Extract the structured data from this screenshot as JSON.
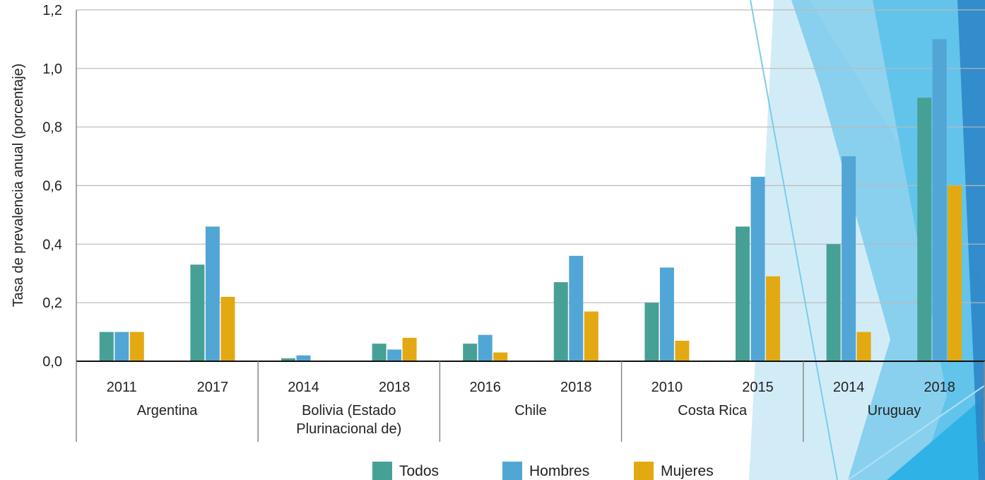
{
  "chart_data": {
    "type": "bar",
    "ylabel": "Tasa de prevalencia anual (porcentaje)",
    "ylim": [
      0,
      1.2
    ],
    "yticks": [
      "0,0",
      "0,2",
      "0,4",
      "0,6",
      "0,8",
      "1,0",
      "1,2"
    ],
    "grid": true,
    "legend_position": "bottom",
    "groups": [
      {
        "label": "Argentina",
        "label_lines": [
          "Argentina"
        ],
        "years": [
          "2011",
          "2017"
        ]
      },
      {
        "label": "Bolivia (Estado Plurinacional de)",
        "label_lines": [
          "Bolivia (Estado",
          "Plurinacional de)"
        ],
        "years": [
          "2014",
          "2018"
        ]
      },
      {
        "label": "Chile",
        "label_lines": [
          "Chile"
        ],
        "years": [
          "2016",
          "2018"
        ]
      },
      {
        "label": "Costa Rica",
        "label_lines": [
          "Costa Rica"
        ],
        "years": [
          "2010",
          "2015"
        ]
      },
      {
        "label": "Uruguay",
        "label_lines": [
          "Uruguay"
        ],
        "years": [
          "2014",
          "2018"
        ]
      }
    ],
    "series": [
      {
        "name": "Todos",
        "color": "#47a095",
        "values": [
          0.1,
          0.33,
          0.01,
          0.06,
          0.06,
          0.27,
          0.2,
          0.46,
          0.4,
          0.9
        ]
      },
      {
        "name": "Hombres",
        "color": "#51a6d5",
        "values": [
          0.1,
          0.46,
          0.02,
          0.04,
          0.09,
          0.36,
          0.32,
          0.63,
          0.7,
          1.1
        ]
      },
      {
        "name": "Mujeres",
        "color": "#e3a912",
        "values": [
          0.1,
          0.22,
          0.0,
          0.08,
          0.03,
          0.17,
          0.07,
          0.29,
          0.1,
          0.6
        ]
      }
    ]
  },
  "decoration": {
    "light_blue": "#cdeaf6",
    "mid_blue": "#7ccbec",
    "bright_blue": "#2fb3e6",
    "dark_blue": "#2a82c6"
  }
}
